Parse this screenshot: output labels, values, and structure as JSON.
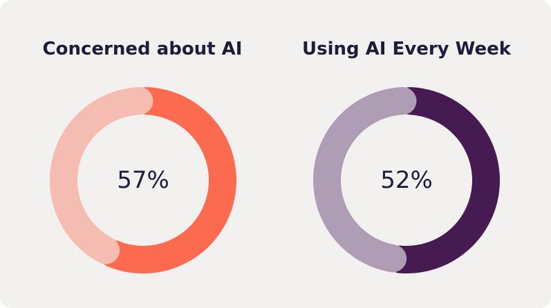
{
  "chart_data": [
    {
      "type": "pie",
      "title": "Concerned about AI",
      "values": [
        57,
        43
      ],
      "center_label": "57%",
      "colors": [
        "#fc6a4f",
        "#f5bcb1"
      ]
    },
    {
      "type": "pie",
      "title": "Using AI Every Week",
      "values": [
        52,
        48
      ],
      "center_label": "52%",
      "colors": [
        "#461b52",
        "#ae9db4"
      ]
    }
  ],
  "background_color": "#f3f1f0",
  "text_color": "#1f1b3a"
}
